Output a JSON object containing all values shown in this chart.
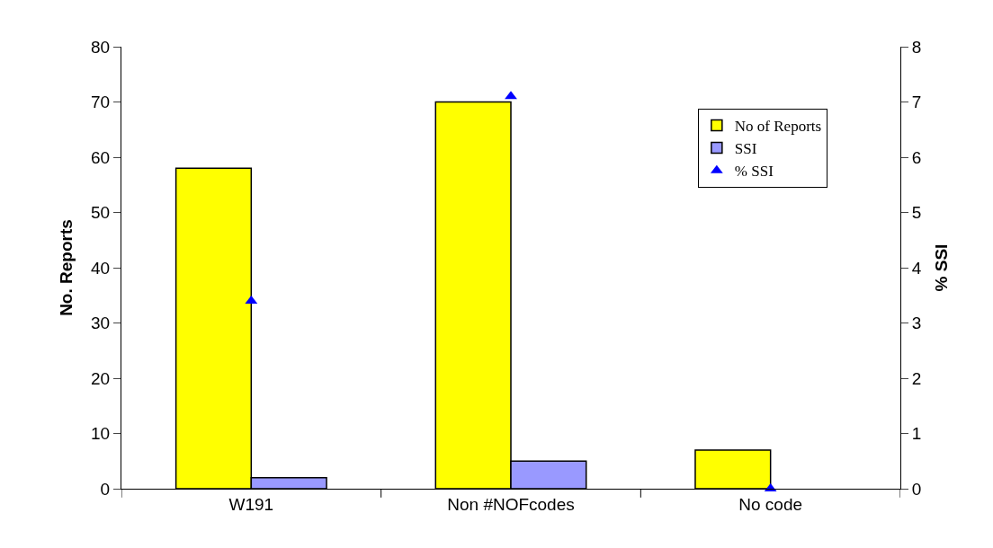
{
  "chart_data": {
    "type": "bar",
    "categories": [
      "W191",
      "Non #NOFcodes",
      "No code"
    ],
    "series": [
      {
        "name": "No of Reports",
        "color": "#ffff00",
        "values": [
          58,
          70,
          7
        ]
      },
      {
        "name": "SSI",
        "color": "#9999ff",
        "values": [
          2,
          5,
          0
        ]
      },
      {
        "name": "% SSI",
        "type": "scatter",
        "axis": "y2",
        "marker": "triangle",
        "color": "#0000ff",
        "values": [
          3.4,
          7.1,
          0
        ]
      }
    ],
    "ylabel": "No. Reports",
    "y2label": "% SSI",
    "ylim": [
      0,
      80
    ],
    "yticks": [
      0,
      10,
      20,
      30,
      40,
      50,
      60,
      70,
      80
    ],
    "y2lim": [
      0,
      8
    ],
    "y2ticks": [
      0,
      1,
      2,
      3,
      4,
      5,
      6,
      7,
      8
    ],
    "grid": false,
    "legend": "top right"
  }
}
